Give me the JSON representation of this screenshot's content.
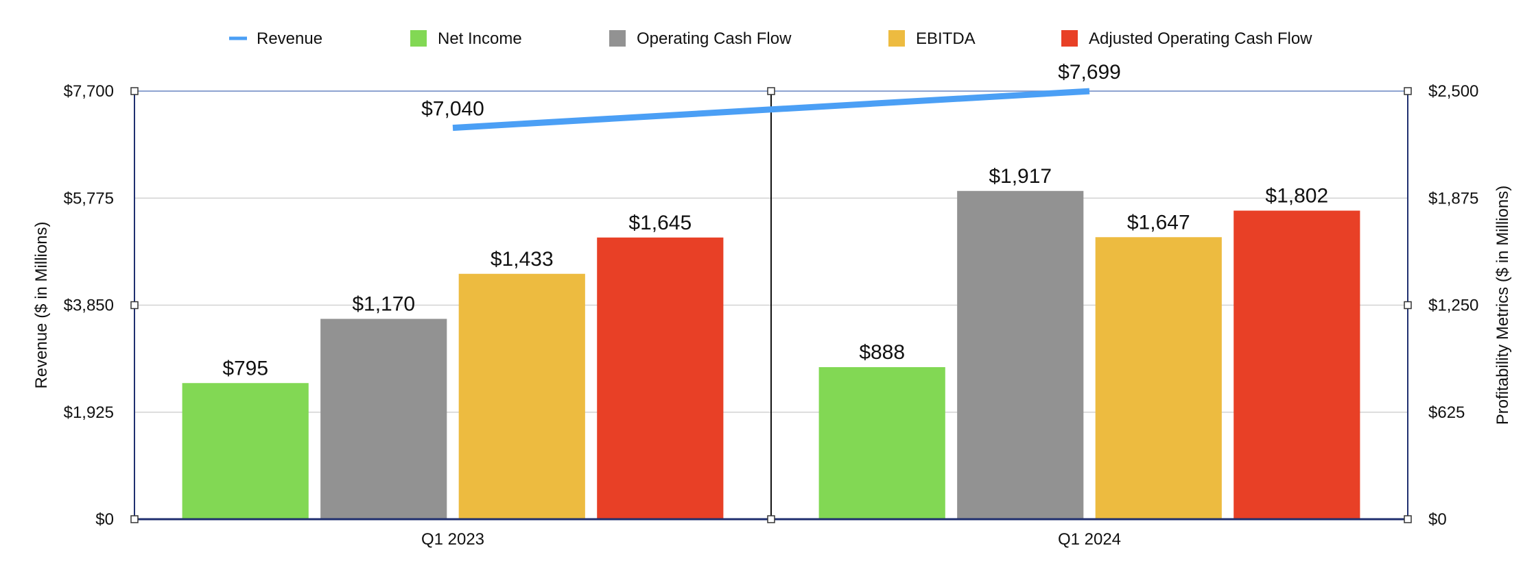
{
  "chart_data": {
    "type": "bar",
    "categories": [
      "Q1 2023",
      "Q1 2024"
    ],
    "series": [
      {
        "name": "Revenue",
        "kind": "line",
        "axis": "left",
        "color": "#4b9ff5",
        "values": [
          7040,
          7699
        ],
        "labels": [
          "$7,040",
          "$7,699"
        ]
      },
      {
        "name": "Net Income",
        "kind": "bar",
        "axis": "right",
        "color": "#82d854",
        "values": [
          795,
          888
        ],
        "labels": [
          "$795",
          "$888"
        ]
      },
      {
        "name": "Operating Cash Flow",
        "kind": "bar",
        "axis": "right",
        "color": "#929292",
        "values": [
          1170,
          1917
        ],
        "labels": [
          "$1,170",
          "$1,917"
        ]
      },
      {
        "name": "EBITDA",
        "kind": "bar",
        "axis": "right",
        "color": "#edbb40",
        "values": [
          1433,
          1647
        ],
        "labels": [
          "$1,433",
          "$1,647"
        ]
      },
      {
        "name": "Adjusted Operating Cash Flow",
        "kind": "bar",
        "axis": "right",
        "color": "#e84026",
        "values": [
          1645,
          1802
        ],
        "labels": [
          "$1,645",
          "$1,802"
        ]
      }
    ],
    "ylabel": "Revenue ($ in Millions)",
    "y2label": "Profitability Metrics ($ in Millions)",
    "ylim": [
      0,
      7700
    ],
    "y2lim": [
      0,
      2500
    ],
    "yticks": [
      "$0",
      "$1,925",
      "$3,850",
      "$5,775",
      "$7,700"
    ],
    "y2ticks": [
      "$0",
      "$625",
      "$1,250",
      "$1,875",
      "$2,500"
    ],
    "grid": true,
    "legend_position": "top"
  }
}
